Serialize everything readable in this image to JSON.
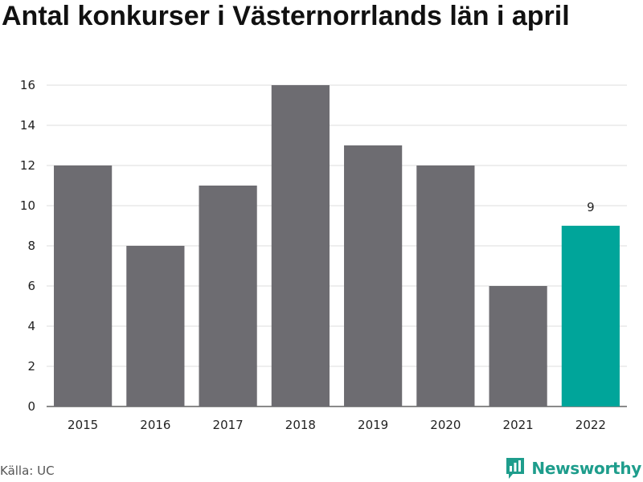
{
  "title": "Antal konkurser i Västernorrlands län i april",
  "source": "Källa: UC",
  "brand": "Newsworthy",
  "colors": {
    "bar": "#6d6c71",
    "highlight": "#00a59a",
    "grid": "#dddddd",
    "brand": "#1e9d8c"
  },
  "chart_data": {
    "type": "bar",
    "title": "Antal konkurser i Västernorrlands län i april",
    "categories": [
      "2015",
      "2016",
      "2017",
      "2018",
      "2019",
      "2020",
      "2021",
      "2022"
    ],
    "values": [
      12,
      8,
      11,
      16,
      13,
      12,
      6,
      9
    ],
    "highlight_index": 7,
    "data_labels": [
      {
        "index": 7,
        "text": "9"
      }
    ],
    "xlabel": "",
    "ylabel": "",
    "ylim": [
      0,
      16
    ],
    "yticks": [
      0,
      2,
      4,
      6,
      8,
      10,
      12,
      14,
      16
    ],
    "grid": true,
    "legend": "none"
  }
}
